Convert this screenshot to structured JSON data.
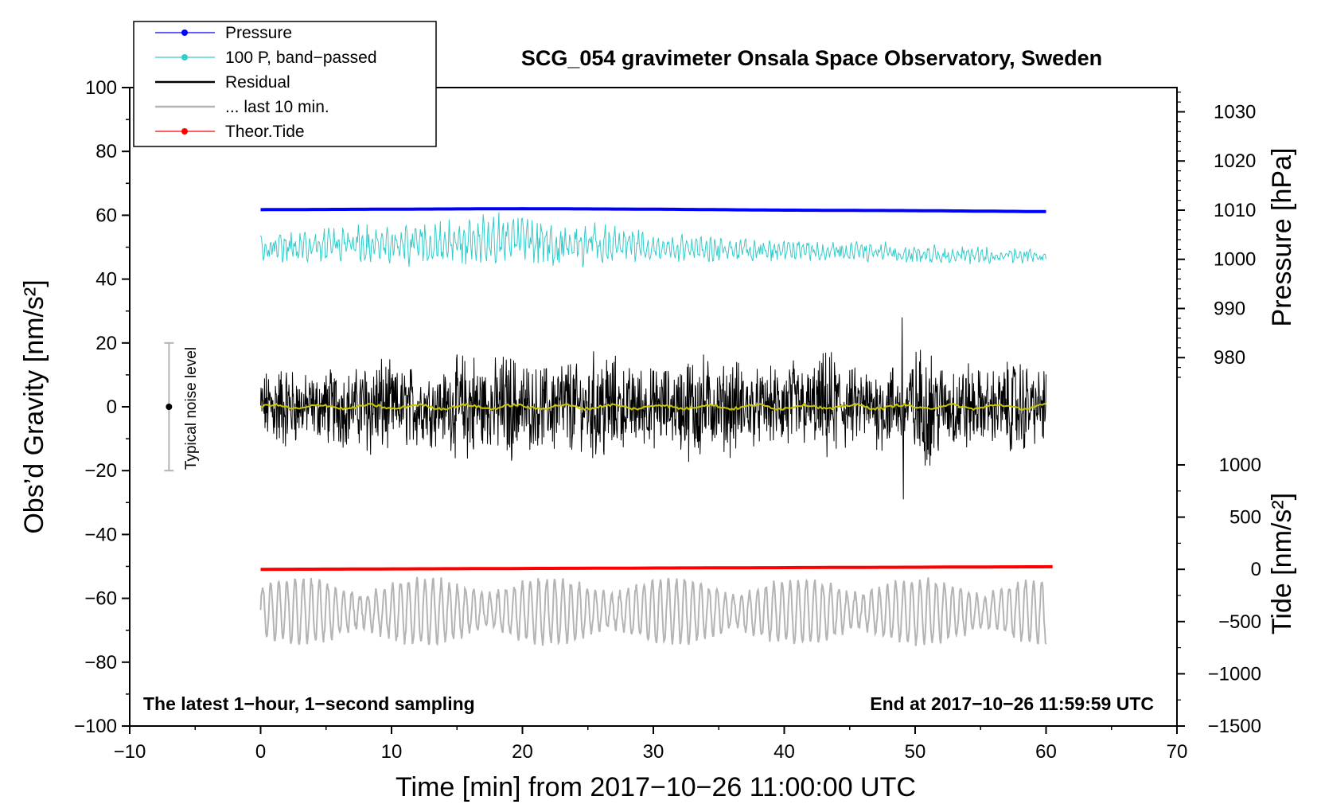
{
  "chart_data": {
    "type": "line",
    "title": "SCG_054 gravimeter Onsala Space Observatory, Sweden",
    "xlabel": "Time [min] from 2017−10−26 11:00:00 UTC",
    "ylabel_left": "Obs’d Gravity [nm/s²]",
    "ylabel_right_top": "Pressure [hPa]",
    "ylabel_right_bottom": "Tide [nm/s²]",
    "xlim": [
      -10,
      70
    ],
    "ylim": [
      -100,
      100
    ],
    "x_ticks": [
      -10,
      0,
      10,
      20,
      30,
      40,
      50,
      60,
      70
    ],
    "x_tick_labels": [
      "−10",
      "0",
      "10",
      "20",
      "30",
      "40",
      "50",
      "60",
      "70"
    ],
    "y_ticks": [
      -100,
      -80,
      -60,
      -40,
      -20,
      0,
      20,
      40,
      60,
      80,
      100
    ],
    "y_tick_labels": [
      "−100",
      "−80",
      "−60",
      "−40",
      "−20",
      "0",
      "20",
      "40",
      "60",
      "80",
      "100"
    ],
    "pressure_axis": {
      "ticks": [
        980,
        990,
        1000,
        1010,
        1020,
        1030
      ],
      "tick_labels": [
        "980",
        "990",
        "1000",
        "1010",
        "1020",
        "1030"
      ],
      "gravity_equiv": {
        "p": [
          1000,
          1010
        ],
        "g": [
          46.2,
          61.6
        ]
      }
    },
    "tide_axis": {
      "ticks": [
        -1500,
        -1000,
        -500,
        0,
        500,
        1000
      ],
      "tick_labels": [
        "−1500",
        "−1000",
        "−500",
        "0",
        "500",
        "1000"
      ],
      "gravity_equiv": {
        "t": [
          -1500,
          1000
        ],
        "g": [
          -100,
          -18.2
        ]
      }
    },
    "legend": {
      "position": "top-left",
      "entries": [
        {
          "label": "Pressure",
          "color": "#0000ff",
          "marker": true
        },
        {
          "label": "100 P, band−passed",
          "color": "#33cccc",
          "marker": true
        },
        {
          "label": "Residual",
          "color": "#000000",
          "marker": false
        },
        {
          "label": "... last 10 min.",
          "color": "#b4b4b4",
          "marker": false
        },
        {
          "label": "Theor.Tide",
          "color": "#ff0000",
          "marker": true
        }
      ]
    },
    "series": [
      {
        "name": "Pressure",
        "axis": "pressure",
        "color": "#0000ff",
        "x": [
          0,
          10,
          20,
          30,
          40,
          50,
          60
        ],
        "values": [
          1010.1,
          1010.2,
          1010.3,
          1010.2,
          1010.0,
          1009.9,
          1009.7
        ]
      },
      {
        "name": "100 P, band−passed",
        "color": "#33cccc",
        "x_range": [
          0,
          60
        ],
        "center": [
          50,
          51,
          52,
          50,
          49,
          48,
          47
        ],
        "center_x": [
          0,
          10,
          20,
          30,
          40,
          50,
          60
        ],
        "amplitude": [
          4,
          6,
          8,
          4,
          3,
          3,
          2
        ]
      },
      {
        "name": "Residual",
        "color": "#000000",
        "x_range": [
          0,
          60
        ],
        "center": 0,
        "amplitude": [
          12,
          14,
          16,
          15,
          14,
          16,
          13
        ],
        "extrema": {
          "max": 28,
          "min": -29
        }
      },
      {
        "name": "Residual smoothed",
        "color": "#c8c800",
        "x_range": [
          0,
          60
        ],
        "center": 0,
        "amplitude": 1
      },
      {
        "name": "... last 10 min.",
        "color": "#b4b4b4",
        "x_range": [
          0,
          60
        ],
        "center": -64,
        "amplitude": 10,
        "extrema": {
          "max": -43,
          "min": -81
        }
      },
      {
        "name": "Theor.Tide",
        "axis": "tide",
        "color": "#ff0000",
        "x": [
          0,
          60.5
        ],
        "values": [
          0,
          25
        ]
      }
    ],
    "noise_level": {
      "x": -7,
      "value": 0,
      "range": [
        -20,
        20
      ],
      "label": "Typical noise level"
    },
    "annotations": {
      "left": "The latest 1−hour, 1−second sampling",
      "right": "End at 2017−10−26 11:59:59 UTC"
    }
  }
}
